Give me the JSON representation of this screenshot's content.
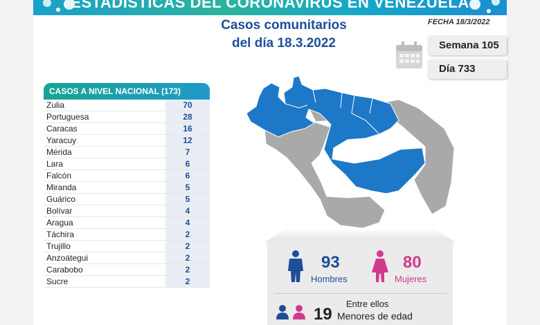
{
  "banner": {
    "title": "ESTADÍSTICAS DEL CORONAVIRUS EN VENEZUELA"
  },
  "headline": {
    "line1": "Casos comunitarios",
    "line2": "del día 18.3.2022"
  },
  "fecha": "FECHA 18/3/2022",
  "semana": "Semana 105",
  "dia": "Día 733",
  "table": {
    "header": "CASOS A NIVEL NACIONAL  (173)",
    "rows": [
      {
        "state": "Zulia",
        "cases": "70"
      },
      {
        "state": "Portuguesa",
        "cases": "28"
      },
      {
        "state": "Caracas",
        "cases": "16"
      },
      {
        "state": "Yaracuy",
        "cases": "12"
      },
      {
        "state": "Mérida",
        "cases": "7"
      },
      {
        "state": "Lara",
        "cases": "6"
      },
      {
        "state": "Falcón",
        "cases": "6"
      },
      {
        "state": "Miranda",
        "cases": "5"
      },
      {
        "state": "Guárico",
        "cases": "5"
      },
      {
        "state": "Bolívar",
        "cases": "4"
      },
      {
        "state": "Aragua",
        "cases": "4"
      },
      {
        "state": "Táchira",
        "cases": "2"
      },
      {
        "state": "Trujillo",
        "cases": "2"
      },
      {
        "state": "Anzoátegui",
        "cases": "2"
      },
      {
        "state": "Carabobo",
        "cases": "2"
      },
      {
        "state": "Sucre",
        "cases": "2"
      }
    ]
  },
  "stats": {
    "men_count": "93",
    "men_label": "Hombres",
    "women_count": "80",
    "women_label": "Mujeres",
    "among_label": "Entre ellos",
    "minors_count": "19",
    "minors_label": "Menores de edad"
  },
  "colors": {
    "blue": "#1f4e99",
    "map_blue": "#1e78c8",
    "map_gray": "#a9a9a9",
    "pink": "#d03a8c"
  }
}
